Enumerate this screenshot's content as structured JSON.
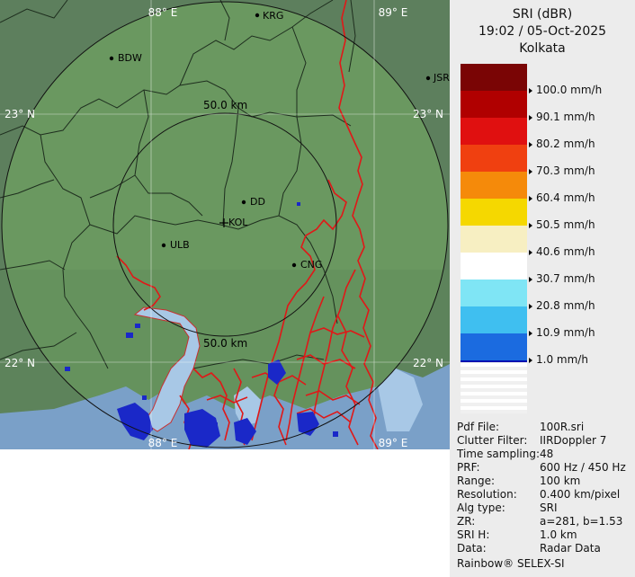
{
  "map": {
    "grid_labels": [
      "88° E",
      "89° E",
      "23° N",
      "23° N",
      "22° N",
      "22° N",
      "88° E",
      "89° E"
    ],
    "range_labels": [
      "50.0 km",
      "50.0 km"
    ],
    "cities": [
      "KRG",
      "BDW",
      "JSR",
      "DD",
      "KOL",
      "ULB",
      "CNG"
    ]
  },
  "panel": {
    "title": "SRI (dBR)",
    "datetime": "19:02 / 05-Oct-2025",
    "station": "Kolkata"
  },
  "legend": [
    {
      "label": "100.0 mm/h",
      "color": "#7a0505"
    },
    {
      "label": "90.1 mm/h",
      "color": "#b00000"
    },
    {
      "label": "80.2 mm/h",
      "color": "#e01010"
    },
    {
      "label": "70.3 mm/h",
      "color": "#f04010"
    },
    {
      "label": "60.4 mm/h",
      "color": "#f58a0a"
    },
    {
      "label": "50.5 mm/h",
      "color": "#f5d800"
    },
    {
      "label": "40.6 mm/h",
      "color": "#f7efc2"
    },
    {
      "label": "30.7 mm/h",
      "color": "#ffffff"
    },
    {
      "label": "20.8 mm/h",
      "color": "#7fe5f5"
    },
    {
      "label": "10.9 mm/h",
      "color": "#3fbff0"
    },
    {
      "label": "1.0 mm/h",
      "color": "#1b6be0"
    },
    {
      "label": "",
      "color": "#0010b0"
    }
  ],
  "metadata": [
    {
      "key": "Pdf File:",
      "value": "100R.sri"
    },
    {
      "key": "Clutter Filter:",
      "value": "IIRDoppler 7"
    },
    {
      "key": "Time sampling:",
      "value": "48"
    },
    {
      "key": "PRF:",
      "value": "600 Hz / 450 Hz"
    },
    {
      "key": "Range:",
      "value": "100 km"
    },
    {
      "key": "Resolution:",
      "value": "0.400 km/pixel"
    },
    {
      "key": "Alg type:",
      "value": "SRI"
    },
    {
      "key": "ZR:",
      "value": "a=281, b=1.53"
    },
    {
      "key": "SRI H:",
      "value": "1.0 km"
    },
    {
      "key": "Data:",
      "value": "Radar Data"
    }
  ],
  "footer": "Rainbow® SELEX-SI"
}
